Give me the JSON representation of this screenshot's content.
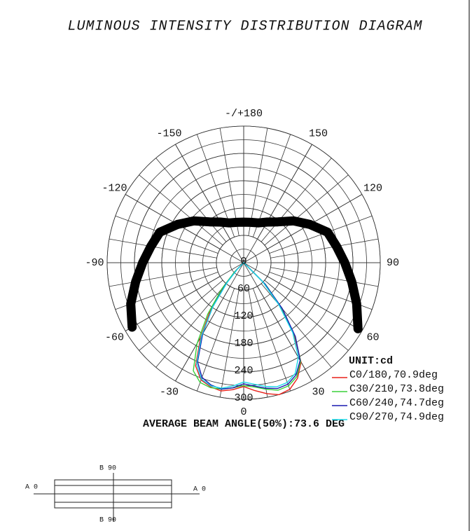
{
  "chart_data": {
    "type": "polar",
    "title": "LUMINOUS INTENSITY DISTRIBUTION DIAGRAM",
    "unit_label": "UNIT:cd",
    "annotation": "AVERAGE BEAM ANGLE(50%):73.6 DEG",
    "rlim": [
      0,
      300
    ],
    "rticks": [
      0,
      60,
      120,
      180,
      240,
      300
    ],
    "radial_grid_step": 30,
    "angle_grid_step": 10,
    "angle_ticks": [
      0,
      30,
      60,
      90,
      120,
      150,
      {
        "value": 180,
        "label": "-/+180"
      },
      -150,
      -120,
      -90,
      -60,
      -30
    ],
    "series": [
      {
        "name": "C0/180,70.9deg",
        "color": "#e8201a",
        "x": [
          -50,
          -45,
          -40,
          -35,
          -30,
          -25,
          -20,
          -15,
          -10,
          -5,
          0,
          5,
          10,
          15,
          20,
          25,
          30,
          35,
          40,
          45,
          50
        ],
        "values": [
          0,
          22,
          66,
          128,
          190,
          250,
          274,
          282,
          286,
          280,
          272,
          282,
          292,
          300,
          296,
          280,
          252,
          192,
          124,
          60,
          0
        ]
      },
      {
        "name": "C30/210,73.8deg",
        "color": "#3ad13a",
        "x": [
          -50,
          -45,
          -40,
          -35,
          -30,
          -25,
          -20,
          -15,
          -10,
          -5,
          0,
          5,
          10,
          15,
          20,
          25,
          30,
          35,
          40,
          45,
          50
        ],
        "values": [
          0,
          28,
          75,
          138,
          205,
          262,
          280,
          284,
          282,
          276,
          270,
          274,
          282,
          290,
          288,
          276,
          250,
          196,
          130,
          68,
          4
        ]
      },
      {
        "name": "C60/240,74.7deg",
        "color": "#1a1ab0",
        "x": [
          -50,
          -45,
          -40,
          -35,
          -30,
          -25,
          -20,
          -15,
          -10,
          -5,
          0,
          5,
          10,
          15,
          20,
          25,
          30,
          35,
          40,
          45,
          50
        ],
        "values": [
          0,
          20,
          60,
          120,
          180,
          240,
          268,
          278,
          282,
          276,
          266,
          272,
          280,
          286,
          284,
          272,
          248,
          198,
          132,
          66,
          2
        ]
      },
      {
        "name": "C90/270,74.9deg",
        "color": "#18d8e8",
        "x": [
          -50,
          -45,
          -40,
          -35,
          -30,
          -25,
          -20,
          -15,
          -10,
          -5,
          0,
          5,
          10,
          15,
          20,
          25,
          30,
          35,
          40,
          45,
          50
        ],
        "values": [
          0,
          18,
          56,
          118,
          185,
          245,
          272,
          280,
          280,
          272,
          262,
          268,
          276,
          282,
          280,
          268,
          240,
          188,
          120,
          58,
          0
        ]
      },
      {
        "color": "#000000",
        "line_width": 13,
        "x": [
          -60,
          -70,
          -80,
          -90,
          -100,
          -110,
          -120,
          -130,
          -140,
          -150,
          -160,
          -170,
          180,
          170,
          160,
          150,
          140,
          130,
          120,
          110,
          100,
          90,
          80,
          70,
          60
        ],
        "values": [
          283,
          264,
          241,
          222,
          207,
          196,
          168,
          143,
          117,
          103,
          93,
          90,
          89,
          90,
          93,
          103,
          117,
          143,
          168,
          196,
          207,
          222,
          241,
          264,
          290
        ]
      }
    ]
  },
  "diagram": {
    "top": "B 90",
    "bottom": "B 90",
    "left": "A 0",
    "right": "A 0"
  }
}
